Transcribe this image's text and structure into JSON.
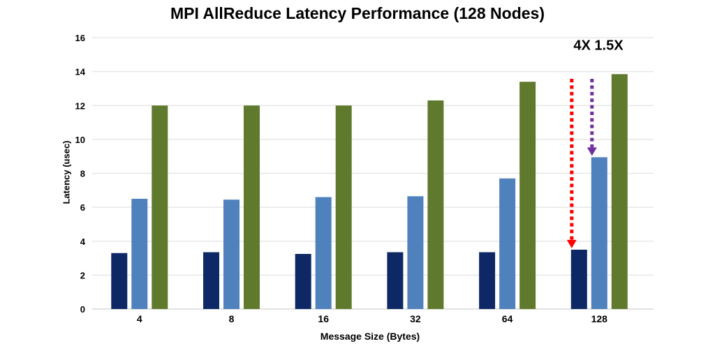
{
  "chart_data": {
    "type": "bar",
    "title": "MPI AllReduce Latency Performance (128 Nodes)",
    "xlabel": "Message Size (Bytes)",
    "ylabel": "Latency (usec)",
    "categories": [
      "4",
      "8",
      "16",
      "32",
      "64",
      "128"
    ],
    "series": [
      {
        "name": "dark-navy-series",
        "color": "#0D2864",
        "values": [
          3.3,
          3.35,
          3.25,
          3.35,
          3.35,
          3.5
        ]
      },
      {
        "name": "light-blue-series",
        "color": "#4F81BD",
        "values": [
          6.5,
          6.45,
          6.6,
          6.65,
          7.7,
          8.95
        ]
      },
      {
        "name": "olive-green-series",
        "color": "#5F7A2D",
        "values": [
          12.0,
          12.0,
          12.0,
          12.3,
          13.4,
          13.85
        ]
      }
    ],
    "ylim": [
      0,
      16
    ],
    "ytick_step": 2,
    "grid": "horizontal",
    "legend": "none",
    "annotations": {
      "label": "4X 1.5X",
      "arrows": [
        {
          "name": "4x-improvement-arrow",
          "label": "4X",
          "color": "#FF0000",
          "target_category": "128",
          "target_series": 0
        },
        {
          "name": "1.5x-improvement-arrow",
          "label": "1.5X",
          "color": "#7030A0",
          "target_category": "128",
          "target_series": 1
        }
      ]
    }
  },
  "colors": {
    "background": "#FFFFFF",
    "gridline": "#E7E7E7",
    "axis_line": "#D9D9D9",
    "text": "#000000"
  }
}
